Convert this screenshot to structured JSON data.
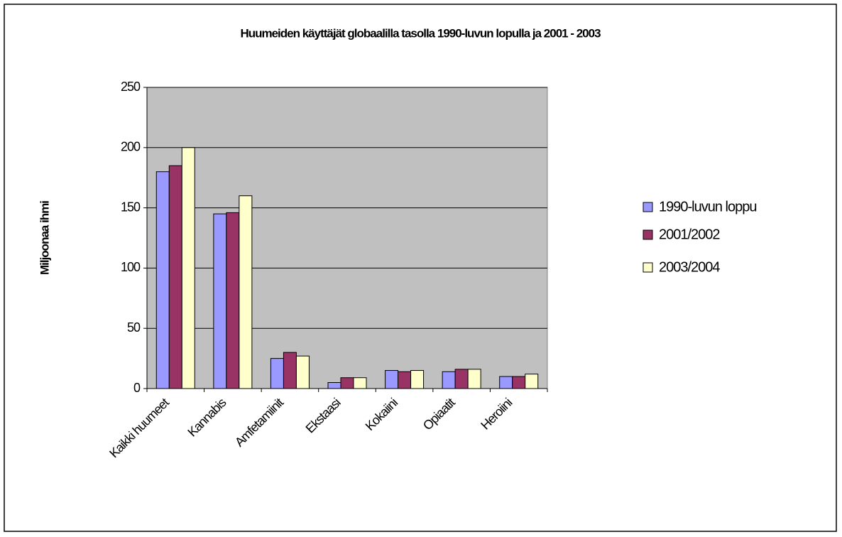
{
  "chart_data": {
    "type": "bar",
    "title": "Huumeiden käyttäjät globaalilla tasolla 1990-luvun lopulla ja 2001 - 2003",
    "y_label": "Miljoonaa ihmi",
    "categories": [
      "Kaikki huumeet",
      "Kannabis",
      "Amfetamiinit",
      "Ekstaasi",
      "Kokaiini",
      "Opiaatit",
      "Heroiini"
    ],
    "series": [
      {
        "name": "1990-luvun loppu",
        "color": "#9999ff",
        "values": [
          180,
          145,
          25,
          5,
          15,
          14,
          10
        ]
      },
      {
        "name": "2001/2002",
        "color": "#993366",
        "values": [
          185,
          146,
          30,
          9,
          14,
          16,
          10
        ]
      },
      {
        "name": "2003/2004",
        "color": "#ffffcc",
        "values": [
          200,
          160,
          27,
          9,
          15,
          16,
          12
        ]
      }
    ],
    "ylim": [
      0,
      250
    ],
    "yticks": [
      0,
      50,
      100,
      150,
      200,
      250
    ],
    "grid": true,
    "legend": "right"
  }
}
